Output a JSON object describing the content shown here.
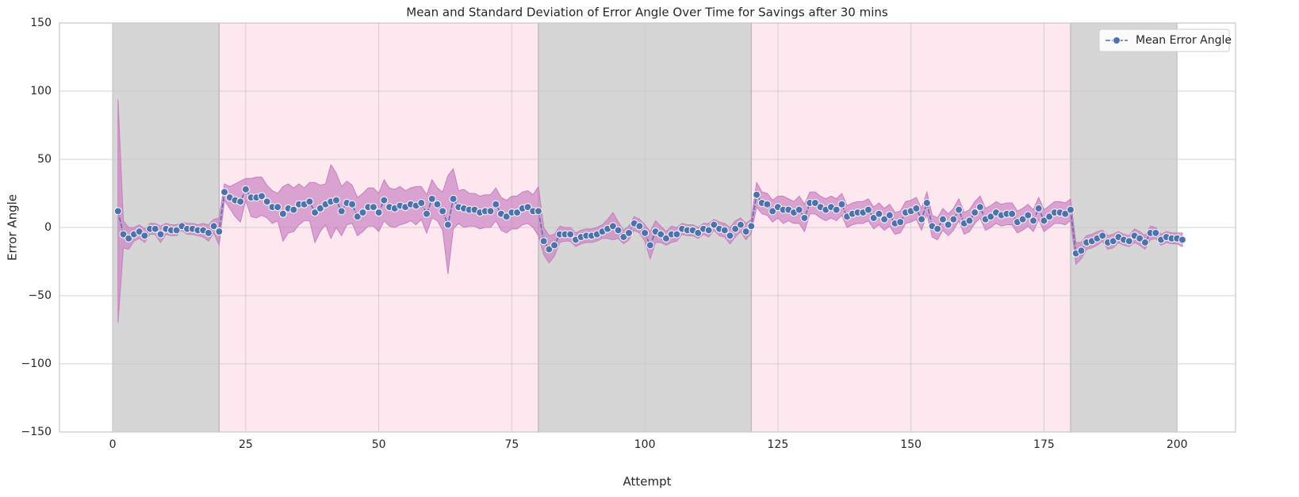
{
  "chart_data": {
    "type": "line",
    "title": "Mean and Standard Deviation of Error Angle Over Time for Savings after 30 mins",
    "x_label": "Attempt",
    "y_label": "Error Angle",
    "xlim": [
      -10,
      211
    ],
    "ylim": [
      -150,
      150
    ],
    "xticks": [
      0,
      25,
      50,
      75,
      100,
      125,
      150,
      175,
      200
    ],
    "yticks": [
      {
        "value": -150,
        "label": "−150"
      },
      {
        "value": -100,
        "label": "−100"
      },
      {
        "value": -50,
        "label": "−50"
      },
      0,
      50,
      100,
      150
    ],
    "grid": true,
    "legend": "upper right",
    "spans": [
      {
        "start": 0,
        "end": 20,
        "color": "#d6d6d6"
      },
      {
        "start": 20,
        "end": 80,
        "color": "#fde8f0"
      },
      {
        "start": 80,
        "end": 120,
        "color": "#d6d6d6"
      },
      {
        "start": 120,
        "end": 180,
        "color": "#fde8f0"
      },
      {
        "start": 180,
        "end": 200,
        "color": "#d6d6d6"
      }
    ],
    "x": [
      1,
      2,
      3,
      4,
      5,
      6,
      7,
      8,
      9,
      10,
      11,
      12,
      13,
      14,
      15,
      16,
      17,
      18,
      19,
      20,
      21,
      22,
      23,
      24,
      25,
      26,
      27,
      28,
      29,
      30,
      31,
      32,
      33,
      34,
      35,
      36,
      37,
      38,
      39,
      40,
      41,
      42,
      43,
      44,
      45,
      46,
      47,
      48,
      49,
      50,
      51,
      52,
      53,
      54,
      55,
      56,
      57,
      58,
      59,
      60,
      61,
      62,
      63,
      64,
      65,
      66,
      67,
      68,
      69,
      70,
      71,
      72,
      73,
      74,
      75,
      76,
      77,
      78,
      79,
      80,
      81,
      82,
      83,
      84,
      85,
      86,
      87,
      88,
      89,
      90,
      91,
      92,
      93,
      94,
      95,
      96,
      97,
      98,
      99,
      100,
      101,
      102,
      103,
      104,
      105,
      106,
      107,
      108,
      109,
      110,
      111,
      112,
      113,
      114,
      115,
      116,
      117,
      118,
      119,
      120,
      121,
      122,
      123,
      124,
      125,
      126,
      127,
      128,
      129,
      130,
      131,
      132,
      133,
      134,
      135,
      136,
      137,
      138,
      139,
      140,
      141,
      142,
      143,
      144,
      145,
      146,
      147,
      148,
      149,
      150,
      151,
      152,
      153,
      154,
      155,
      156,
      157,
      158,
      159,
      160,
      161,
      162,
      163,
      164,
      165,
      166,
      167,
      168,
      169,
      170,
      171,
      172,
      173,
      174,
      175,
      176,
      177,
      178,
      179,
      180,
      181,
      182,
      183,
      184,
      185,
      186,
      187,
      188,
      189,
      190,
      191,
      192,
      193,
      194,
      195,
      196,
      197,
      198,
      199,
      200,
      201
    ],
    "series": [
      {
        "name": "Mean Error Angle",
        "color": "#4c72b0",
        "band_color": "#c77dbf",
        "values": [
          12,
          -5,
          -8,
          -5,
          -3,
          -6,
          -1,
          -1,
          -5,
          -1,
          -2,
          -2,
          1,
          -1,
          -1,
          -2,
          -2,
          -4,
          1,
          -3,
          26,
          22,
          20,
          19,
          28,
          22,
          22,
          23,
          19,
          15,
          15,
          10,
          14,
          13,
          17,
          17,
          19,
          11,
          14,
          17,
          19,
          20,
          12,
          18,
          17,
          8,
          11,
          15,
          15,
          11,
          20,
          15,
          14,
          16,
          15,
          17,
          16,
          18,
          10,
          21,
          17,
          12,
          2,
          21,
          15,
          14,
          13,
          13,
          11,
          12,
          12,
          17,
          10,
          8,
          11,
          11,
          14,
          15,
          12,
          12,
          -10,
          -16,
          -13,
          -5,
          -5,
          -5,
          -9,
          -7,
          -6,
          -6,
          -5,
          -3,
          -1,
          1,
          -2,
          -7,
          -4,
          3,
          1,
          -4,
          -13,
          -3,
          -5,
          -8,
          -5,
          -5,
          -1,
          -2,
          -2,
          -4,
          -1,
          -2,
          2,
          -1,
          -2,
          -6,
          -1,
          2,
          -3,
          1,
          24,
          18,
          17,
          12,
          15,
          13,
          13,
          11,
          13,
          7,
          18,
          18,
          15,
          13,
          15,
          13,
          17,
          8,
          10,
          11,
          11,
          13,
          7,
          10,
          6,
          9,
          3,
          4,
          11,
          12,
          14,
          6,
          18,
          1,
          -1,
          6,
          2,
          6,
          13,
          3,
          5,
          11,
          15,
          6,
          8,
          11,
          9,
          10,
          10,
          4,
          6,
          9,
          5,
          14,
          5,
          8,
          11,
          11,
          10,
          13,
          -19,
          -17,
          -11,
          -10,
          -8,
          -6,
          -11,
          -10,
          -7,
          -9,
          -10,
          -6,
          -8,
          -11,
          -4,
          -4,
          -9,
          -7,
          -8,
          -8,
          -9
        ],
        "std": [
          82,
          10,
          8,
          5,
          5,
          5,
          4,
          4,
          6,
          4,
          4,
          4,
          3,
          4,
          4,
          4,
          5,
          6,
          5,
          10,
          6,
          8,
          12,
          15,
          8,
          14,
          15,
          14,
          12,
          12,
          10,
          20,
          18,
          16,
          15,
          12,
          14,
          22,
          17,
          15,
          27,
          20,
          18,
          16,
          14,
          14,
          14,
          14,
          14,
          14,
          15,
          14,
          14,
          14,
          12,
          12,
          14,
          12,
          14,
          14,
          12,
          14,
          36,
          22,
          12,
          14,
          12,
          12,
          12,
          12,
          12,
          12,
          12,
          12,
          12,
          12,
          12,
          12,
          12,
          18,
          10,
          10,
          8,
          6,
          5,
          5,
          5,
          5,
          5,
          5,
          5,
          5,
          7,
          10,
          6,
          5,
          5,
          5,
          5,
          6,
          10,
          8,
          6,
          5,
          6,
          5,
          4,
          4,
          4,
          4,
          4,
          5,
          4,
          5,
          5,
          6,
          6,
          5,
          6,
          5,
          9,
          8,
          8,
          8,
          8,
          10,
          8,
          8,
          10,
          10,
          8,
          8,
          8,
          8,
          8,
          8,
          8,
          8,
          8,
          8,
          8,
          8,
          8,
          8,
          8,
          8,
          8,
          8,
          8,
          8,
          8,
          8,
          8,
          8,
          8,
          8,
          8,
          8,
          8,
          8,
          8,
          8,
          8,
          8,
          8,
          8,
          8,
          8,
          8,
          8,
          8,
          8,
          8,
          8,
          8,
          8,
          8,
          8,
          8,
          8,
          8,
          6,
          5,
          5,
          5,
          4,
          5,
          5,
          4,
          4,
          4,
          5,
          5,
          5,
          5,
          4,
          4,
          4,
          4,
          4,
          5
        ]
      }
    ]
  }
}
